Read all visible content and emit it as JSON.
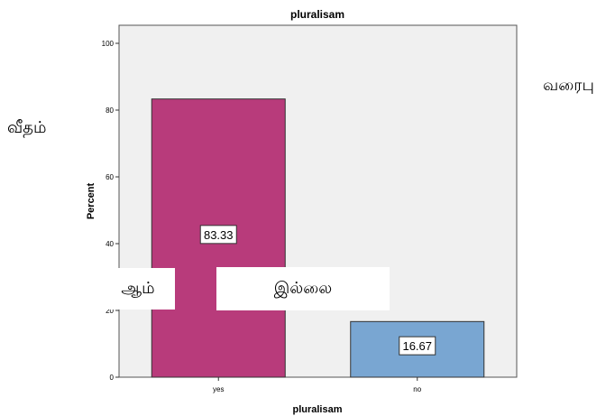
{
  "chart_data": {
    "type": "bar",
    "title": "pluralisam",
    "xlabel": "pluralisam",
    "ylabel": "Percent",
    "categories": [
      "yes",
      "no"
    ],
    "values": [
      83.33,
      16.67
    ],
    "data_labels": [
      "83.33",
      "16.67"
    ],
    "colors": [
      "#b83b7b",
      "#79a6d2"
    ],
    "ylim": [
      0,
      100
    ],
    "yticks": [
      0,
      20,
      40,
      60,
      80,
      100
    ],
    "grid": false,
    "plot_background": "#f0f0f0"
  },
  "annotations": {
    "left_word": "வீதம்",
    "right_word": "வரைபு",
    "yes_overlay": "ஆம்",
    "no_overlay": "இல்லை"
  }
}
